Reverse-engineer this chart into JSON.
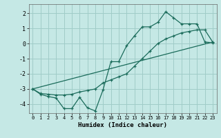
{
  "xlabel": "Humidex (Indice chaleur)",
  "background_color": "#c5e8e5",
  "grid_color": "#a0ccc8",
  "line_color": "#1a6b5a",
  "xlim": [
    -0.5,
    23.5
  ],
  "ylim": [
    -4.6,
    2.6
  ],
  "yticks": [
    -4,
    -3,
    -2,
    -1,
    0,
    1,
    2
  ],
  "xticks": [
    0,
    1,
    2,
    3,
    4,
    5,
    6,
    7,
    8,
    9,
    10,
    11,
    12,
    13,
    14,
    15,
    16,
    17,
    18,
    19,
    20,
    21,
    22,
    23
  ],
  "line1_x": [
    0,
    1,
    2,
    3,
    4,
    5,
    6,
    7,
    8,
    9,
    10,
    11,
    12,
    13,
    14,
    15,
    16,
    17,
    18,
    19,
    20,
    21,
    22,
    23
  ],
  "line1_y": [
    -3.0,
    -3.35,
    -3.5,
    -3.6,
    -4.3,
    -4.3,
    -3.55,
    -4.25,
    -4.45,
    -3.05,
    -1.2,
    -1.2,
    -0.15,
    0.5,
    1.1,
    1.1,
    1.4,
    2.1,
    1.7,
    1.3,
    1.3,
    1.3,
    0.1,
    0.05
  ],
  "line2_x": [
    0,
    1,
    2,
    3,
    4,
    5,
    6,
    7,
    8,
    9,
    10,
    11,
    12,
    13,
    14,
    15,
    16,
    17,
    18,
    19,
    20,
    21,
    22,
    23
  ],
  "line2_y": [
    -3.0,
    -3.3,
    -3.35,
    -3.4,
    -3.4,
    -3.35,
    -3.2,
    -3.1,
    -3.0,
    -2.6,
    -2.4,
    -2.2,
    -2.0,
    -1.5,
    -1.0,
    -0.5,
    0.0,
    0.3,
    0.5,
    0.7,
    0.8,
    0.9,
    0.9,
    0.1
  ],
  "line3_x": [
    0,
    23
  ],
  "line3_y": [
    -3.0,
    0.1
  ]
}
